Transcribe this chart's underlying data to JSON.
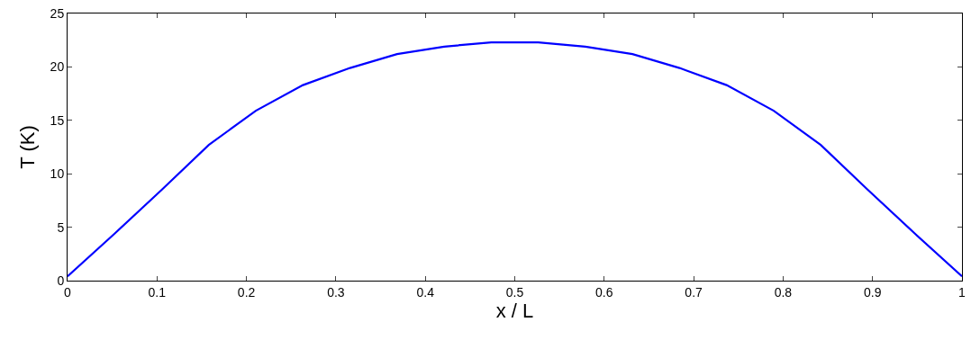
{
  "chart_data": {
    "type": "line",
    "xlabel": "x / L",
    "ylabel": "T (K)",
    "x": [
      0,
      0.0526,
      0.1053,
      0.1579,
      0.2105,
      0.2632,
      0.3158,
      0.3684,
      0.4211,
      0.4737,
      0.5263,
      0.5789,
      0.6316,
      0.6842,
      0.7368,
      0.7895,
      0.8421,
      0.8947,
      0.9474,
      1
    ],
    "series": [
      {
        "color": "#0000ff",
        "values": [
          0.4,
          4.4,
          8.5,
          12.7,
          15.9,
          18.3,
          19.9,
          21.2,
          21.9,
          22.3,
          22.3,
          21.9,
          21.2,
          19.9,
          18.3,
          15.9,
          12.7,
          8.5,
          4.4,
          0.4
        ]
      }
    ],
    "xlim": [
      0,
      1
    ],
    "xticks": [
      0,
      0.1,
      0.2,
      0.3,
      0.4,
      0.5,
      0.6,
      0.7,
      0.8,
      0.9,
      1
    ],
    "ylim": [
      0,
      25
    ],
    "yticks": [
      0,
      5,
      10,
      15,
      20,
      25
    ],
    "grid": false,
    "marker": "none",
    "line_style": "solid"
  }
}
